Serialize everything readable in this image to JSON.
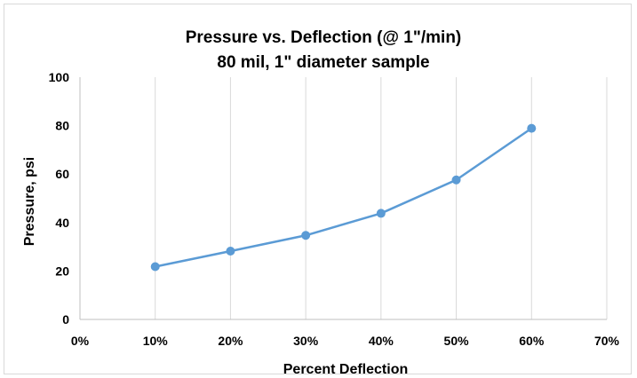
{
  "chart_data": {
    "type": "line",
    "title": "Pressure vs. Deflection (@ 1\"/min)",
    "subtitle": "80 mil, 1\" diameter sample",
    "xlabel": "Percent Deflection",
    "ylabel": "Pressure, psi",
    "xlim": [
      0,
      70
    ],
    "ylim": [
      0,
      100
    ],
    "x_ticks": [
      "0%",
      "10%",
      "20%",
      "30%",
      "40%",
      "50%",
      "60%",
      "70%"
    ],
    "y_ticks": [
      "0",
      "20",
      "40",
      "60",
      "80",
      "100"
    ],
    "grid": "vertical",
    "series": [
      {
        "x": [
          10,
          20,
          30,
          40,
          50,
          60
        ],
        "y": [
          21.8,
          28.2,
          34.7,
          43.8,
          57.6,
          78.9
        ],
        "color": "#5b9bd5"
      }
    ]
  }
}
